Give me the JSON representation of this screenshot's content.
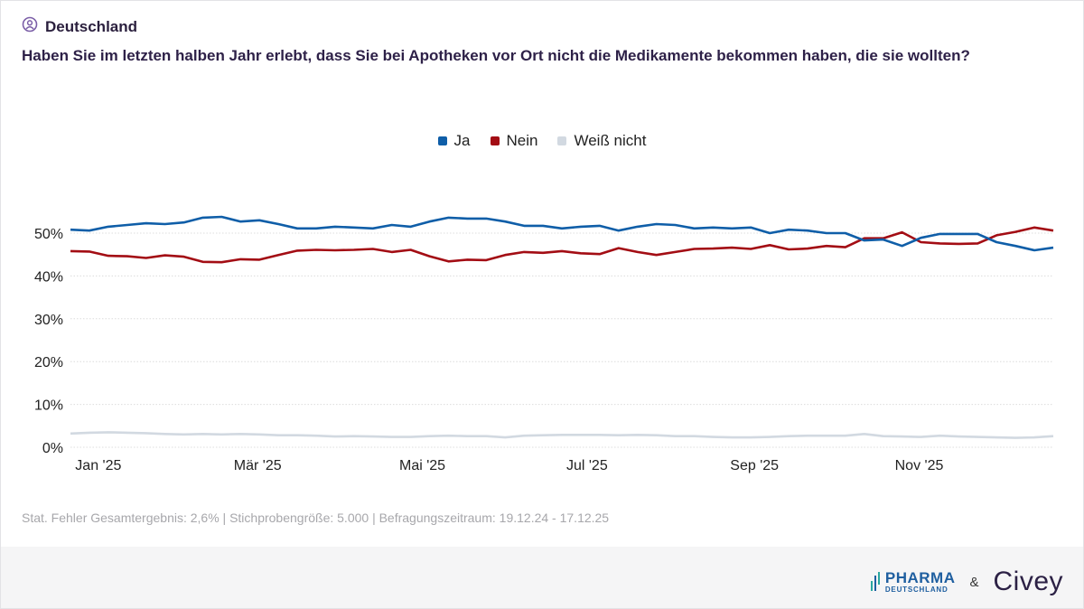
{
  "header": {
    "region": "Deutschland",
    "region_icon": "person-search-icon",
    "question": "Haben Sie im letzten halben Jahr erlebt, dass Sie bei Apotheken vor Ort nicht die Medikamente bekommen haben, die sie wollten?"
  },
  "footer": {
    "note": "Stat. Fehler Gesamtergebnis: 2,6% | Stichprobengröße: 5.000 | Befragungszeitraum: 19.12.24 - 17.12.25",
    "logo_pharma_line1": "PHARMA",
    "logo_pharma_line2": "DEUTSCHLAND",
    "ampersand": "&",
    "logo_civey": "Civey"
  },
  "chart_data": {
    "type": "line",
    "legend_position": "top",
    "grid": true,
    "ylim": [
      0,
      50
    ],
    "y_ticks": [
      "0%",
      "10%",
      "20%",
      "30%",
      "40%",
      "50%"
    ],
    "x_ticks": [
      {
        "label": "Jan '25",
        "date": "2025-01-01"
      },
      {
        "label": "Mär '25",
        "date": "2025-03-01"
      },
      {
        "label": "Mai '25",
        "date": "2025-05-01"
      },
      {
        "label": "Jul '25",
        "date": "2025-07-01"
      },
      {
        "label": "Sep '25",
        "date": "2025-09-01"
      },
      {
        "label": "Nov '25",
        "date": "2025-11-01"
      }
    ],
    "x": [
      "2024-12-18",
      "2024-12-25",
      "2025-01-01",
      "2025-01-08",
      "2025-01-15",
      "2025-01-22",
      "2025-01-29",
      "2025-02-05",
      "2025-02-12",
      "2025-02-19",
      "2025-02-26",
      "2025-03-05",
      "2025-03-12",
      "2025-03-19",
      "2025-03-26",
      "2025-04-02",
      "2025-04-09",
      "2025-04-16",
      "2025-04-23",
      "2025-04-30",
      "2025-05-07",
      "2025-05-14",
      "2025-05-21",
      "2025-05-28",
      "2025-06-04",
      "2025-06-11",
      "2025-06-18",
      "2025-06-25",
      "2025-07-02",
      "2025-07-09",
      "2025-07-16",
      "2025-07-23",
      "2025-07-30",
      "2025-08-06",
      "2025-08-13",
      "2025-08-20",
      "2025-08-27",
      "2025-09-03",
      "2025-09-10",
      "2025-09-17",
      "2025-09-24",
      "2025-10-01",
      "2025-10-08",
      "2025-10-15",
      "2025-10-22",
      "2025-10-29",
      "2025-11-05",
      "2025-11-12",
      "2025-11-19",
      "2025-11-26",
      "2025-12-03",
      "2025-12-10",
      "2025-12-17"
    ],
    "series": [
      {
        "name": "Ja",
        "color": "#0f5ea8",
        "values": [
          50.8,
          50.6,
          51.5,
          51.9,
          52.3,
          52.1,
          52.5,
          53.6,
          53.8,
          52.7,
          53.0,
          52.1,
          51.1,
          51.1,
          51.5,
          51.3,
          51.1,
          51.9,
          51.5,
          52.7,
          53.6,
          53.4,
          53.4,
          52.7,
          51.7,
          51.7,
          51.1,
          51.5,
          51.7,
          50.6,
          51.5,
          52.1,
          51.9,
          51.1,
          51.3,
          51.1,
          51.3,
          50.0,
          50.8,
          50.6,
          50.0,
          50.0,
          48.3,
          48.5,
          47.0,
          48.9,
          49.8,
          49.8,
          49.8,
          47.9,
          47.0,
          46.0,
          46.6
        ]
      },
      {
        "name": "Nein",
        "color": "#a30d14",
        "values": [
          45.8,
          45.7,
          44.7,
          44.6,
          44.2,
          44.8,
          44.5,
          43.3,
          43.2,
          43.9,
          43.8,
          44.9,
          45.9,
          46.1,
          46.0,
          46.1,
          46.3,
          45.6,
          46.1,
          44.6,
          43.4,
          43.8,
          43.7,
          44.9,
          45.6,
          45.4,
          45.8,
          45.3,
          45.1,
          46.5,
          45.6,
          44.9,
          45.6,
          46.3,
          46.4,
          46.6,
          46.3,
          47.2,
          46.2,
          46.4,
          47.0,
          46.7,
          48.8,
          48.8,
          50.2,
          47.9,
          47.6,
          47.5,
          47.6,
          49.5,
          50.3,
          51.3,
          50.6
        ]
      },
      {
        "name": "Weiß nicht",
        "color": "#d2d9e1",
        "values": [
          3.2,
          3.4,
          3.5,
          3.4,
          3.3,
          3.1,
          3.0,
          3.1,
          3.0,
          3.1,
          3.0,
          2.8,
          2.8,
          2.7,
          2.5,
          2.6,
          2.5,
          2.4,
          2.4,
          2.6,
          2.7,
          2.6,
          2.6,
          2.3,
          2.7,
          2.8,
          2.9,
          2.9,
          2.9,
          2.8,
          2.9,
          2.8,
          2.6,
          2.6,
          2.4,
          2.3,
          2.3,
          2.4,
          2.6,
          2.7,
          2.7,
          2.7,
          3.1,
          2.6,
          2.5,
          2.4,
          2.7,
          2.5,
          2.4,
          2.3,
          2.2,
          2.3,
          2.6
        ]
      }
    ]
  }
}
